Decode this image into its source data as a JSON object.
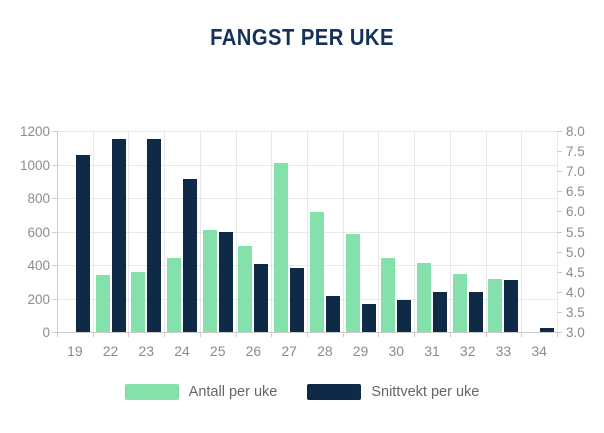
{
  "title": "FANGST PER UKE",
  "colors": {
    "title": "#15325A",
    "antall_green": "#84E1AC",
    "snittvekt_navy": "#0E2A47",
    "axis_text": "#8C8C8C",
    "legend_text": "#666666",
    "grid": "#E8E8E8",
    "axis_line": "#CCCCCC"
  },
  "chart_data": {
    "type": "bar",
    "title": "FANGST PER UKE",
    "categories": [
      "19",
      "22",
      "23",
      "24",
      "25",
      "26",
      "27",
      "28",
      "29",
      "30",
      "31",
      "32",
      "33",
      "34"
    ],
    "series": [
      {
        "name": "Antall per uke",
        "axis": "left",
        "color": "#84E1AC",
        "values": [
          0,
          340,
          360,
          440,
          610,
          515,
          1010,
          715,
          585,
          440,
          410,
          345,
          315,
          0
        ]
      },
      {
        "name": "Snittvekt per uke",
        "axis": "right",
        "color": "#0E2A47",
        "values": [
          7.4,
          7.8,
          7.8,
          6.8,
          5.5,
          4.7,
          4.6,
          3.9,
          3.7,
          3.8,
          4.0,
          4.0,
          4.3,
          3.1
        ]
      }
    ],
    "left_axis": {
      "min": 0,
      "max": 1200,
      "step": 200,
      "ticks": [
        0,
        200,
        400,
        600,
        800,
        1000,
        1200
      ]
    },
    "right_axis": {
      "min": 3.0,
      "max": 8.0,
      "step": 0.5,
      "ticks": [
        3.0,
        3.5,
        4.0,
        4.5,
        5.0,
        5.5,
        6.0,
        6.5,
        7.0,
        7.5,
        8.0
      ]
    },
    "grid": true,
    "legend_position": "bottom"
  },
  "legend": {
    "items": [
      {
        "label": "Antall per uke",
        "color": "#84E1AC"
      },
      {
        "label": "Snittvekt per uke",
        "color": "#0E2A47"
      }
    ]
  }
}
